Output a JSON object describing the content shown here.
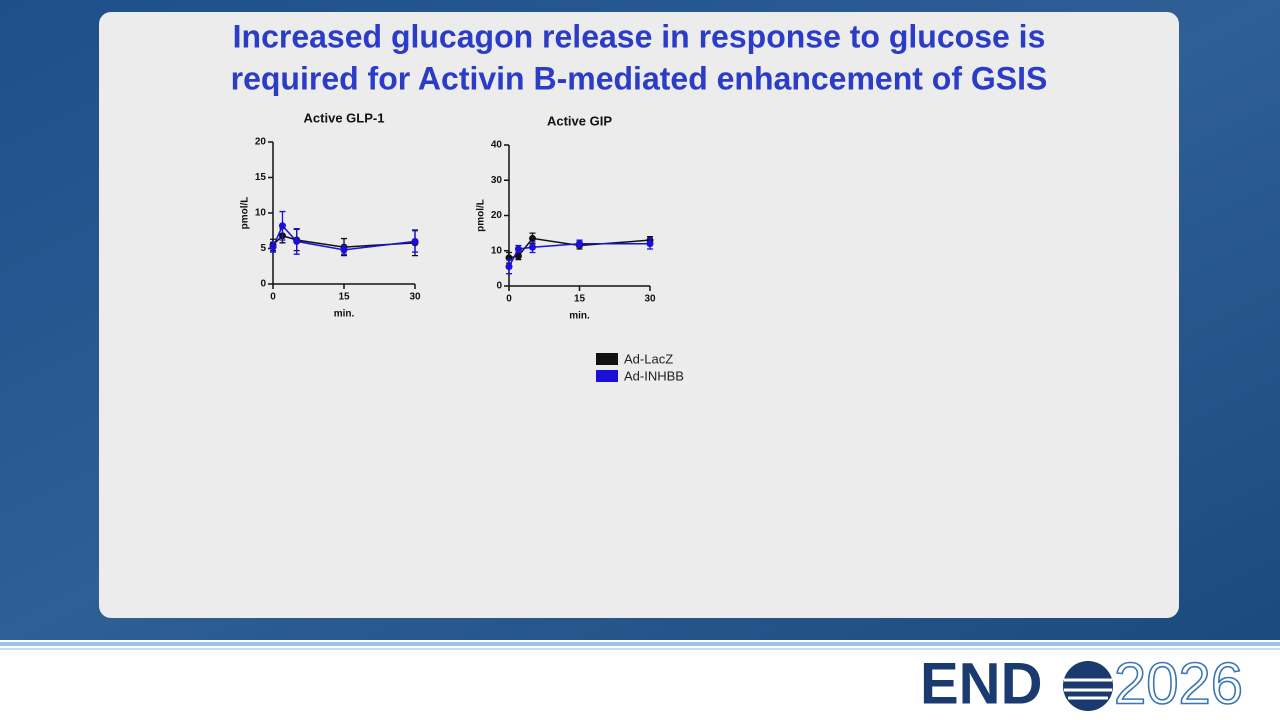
{
  "slide_title": [
    "Increased glucagon release in response to glucose is",
    "required for Activin B-mediated enhancement of GSIS"
  ],
  "logo": {
    "left": "END",
    "right": "2026"
  },
  "chart_data": [
    {
      "type": "line",
      "title": "Active GLP-1",
      "x_label": "min.",
      "y_label": "pmol/L",
      "x": [
        0,
        2,
        5,
        15,
        30
      ],
      "xlim": [
        0,
        30
      ],
      "xticks": [
        0,
        15,
        30
      ],
      "ylim": [
        0,
        20
      ],
      "yticks": [
        0,
        5,
        10,
        15,
        20
      ],
      "series": [
        {
          "name": "Ad-LacZ",
          "color": "#111111",
          "values": [
            5.5,
            6.8,
            6.2,
            5.2,
            5.8
          ],
          "errors": [
            0.8,
            1.0,
            1.5,
            1.2,
            1.8
          ]
        },
        {
          "name": "Ad-INHBB",
          "color": "#1a10d8",
          "values": [
            5.2,
            8.2,
            6.0,
            4.8,
            6.0
          ],
          "errors": [
            0.7,
            2.0,
            1.8,
            0.6,
            1.5
          ]
        }
      ]
    },
    {
      "type": "line",
      "title": "Active GIP",
      "x_label": "min.",
      "y_label": "pmol/L",
      "x": [
        0,
        2,
        5,
        15,
        30
      ],
      "xlim": [
        0,
        30
      ],
      "xticks": [
        0,
        15,
        30
      ],
      "ylim": [
        0,
        40
      ],
      "yticks": [
        0,
        10,
        20,
        30,
        40
      ],
      "series": [
        {
          "name": "Ad-LacZ",
          "color": "#111111",
          "values": [
            8,
            8.5,
            13.5,
            11.5,
            13
          ],
          "errors": [
            1.5,
            1,
            1.5,
            1,
            1
          ]
        },
        {
          "name": "Ad-INHBB",
          "color": "#1a10d8",
          "values": [
            5.5,
            10.5,
            11,
            12,
            12
          ],
          "errors": [
            2,
            1,
            1.5,
            1,
            1.5
          ]
        }
      ]
    }
  ]
}
